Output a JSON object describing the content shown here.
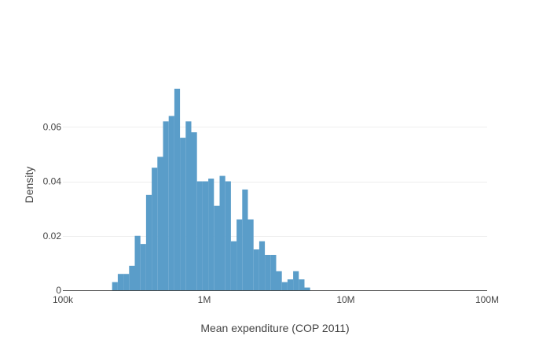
{
  "chart_data": {
    "type": "bar",
    "subtype": "histogram",
    "title": "",
    "xlabel": "Mean expenditure (COP 2011)",
    "ylabel": "Density",
    "x_scale": "log",
    "xlim": [
      100000,
      100000000
    ],
    "ylim": [
      0,
      0.08
    ],
    "x_ticks": [
      {
        "value": 100000,
        "label": "100k"
      },
      {
        "value": 1000000,
        "label": "1M"
      },
      {
        "value": 10000000,
        "label": "10M"
      },
      {
        "value": 100000000,
        "label": "100M"
      }
    ],
    "y_ticks": [
      {
        "value": 0,
        "label": "0"
      },
      {
        "value": 0.02,
        "label": "0.02"
      },
      {
        "value": 0.04,
        "label": "0.04"
      },
      {
        "value": 0.06,
        "label": "0.06"
      }
    ],
    "grid": true,
    "bar_color": "#5a9dc9",
    "bin_start": 223000,
    "bin_log_width": 0.04,
    "values": [
      0.003,
      0.006,
      0.006,
      0.009,
      0.02,
      0.017,
      0.035,
      0.045,
      0.049,
      0.062,
      0.064,
      0.074,
      0.056,
      0.062,
      0.058,
      0.04,
      0.04,
      0.041,
      0.031,
      0.042,
      0.04,
      0.018,
      0.026,
      0.037,
      0.026,
      0.015,
      0.018,
      0.013,
      0.013,
      0.007,
      0.003,
      0.004,
      0.007,
      0.004,
      0.001
    ]
  }
}
